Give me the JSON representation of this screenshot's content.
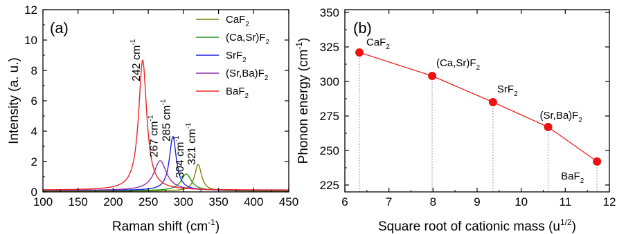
{
  "chart_data": [
    {
      "type": "line",
      "panel_label": "(a)",
      "xlabel": "Raman shift (cm",
      "xlabel_sup": "-1",
      "xlabel_tail": ")",
      "ylabel": "Intensity (a. u.)",
      "xlim": [
        100,
        450
      ],
      "ylim": [
        0,
        12
      ],
      "x_ticks": [
        "100",
        "150",
        "200",
        "250",
        "300",
        "350",
        "400",
        "450"
      ],
      "y_ticks": [
        "0",
        "2",
        "4",
        "6",
        "8",
        "10",
        "12"
      ],
      "legend_position": "top-right",
      "series": [
        {
          "base": "CaF",
          "sub": "2",
          "color": "#808000",
          "center": 321,
          "gamma": 6,
          "amplitude": 1.75,
          "baseline": 0.05,
          "label": "321 cm",
          "label_sup": "-1"
        },
        {
          "base": "(Ca,Sr)F",
          "sub": "2",
          "color": "#1a9a1a",
          "center": 304,
          "gamma": 9,
          "amplitude": 1.1,
          "baseline": 0.08,
          "label": "304 cm",
          "label_sup": "-1"
        },
        {
          "base": "SrF",
          "sub": "2",
          "color": "#1f1fe6",
          "center": 285,
          "gamma": 6,
          "amplitude": 3.55,
          "baseline": 0.1,
          "label": "285 cm",
          "label_sup": "-1"
        },
        {
          "base": "(Sr,Ba)F",
          "sub": "2",
          "color": "#8b2fa8",
          "center": 267,
          "gamma": 11,
          "amplitude": 1.95,
          "baseline": 0.1,
          "label": "267 cm",
          "label_sup": "-1"
        },
        {
          "base": "BaF",
          "sub": "2",
          "color": "#ee2222",
          "center": 242,
          "gamma": 7,
          "amplitude": 8.55,
          "baseline": 0.12,
          "label": "242 cm",
          "label_sup": "-1"
        }
      ]
    },
    {
      "type": "line",
      "panel_label": "(b)",
      "xlabel": "Square root of cationic mass (u",
      "xlabel_sup": "1/2",
      "xlabel_tail": ")",
      "ylabel": "Phonon energy (cm",
      "ylabel_sup": "-1",
      "ylabel_tail": ")",
      "xlim": [
        6,
        12
      ],
      "ylim": [
        220,
        352
      ],
      "x_ticks": [
        "6",
        "7",
        "8",
        "9",
        "10",
        "11",
        "12"
      ],
      "y_ticks": [
        "225",
        "250",
        "275",
        "300",
        "325",
        "350"
      ],
      "line_color": "#ee2222",
      "marker_color": "#ee1111",
      "points": [
        {
          "x": 6.33,
          "y": 321,
          "base": "CaF",
          "sub": "2"
        },
        {
          "x": 7.98,
          "y": 304,
          "base": "(Ca,Sr)F",
          "sub": "2"
        },
        {
          "x": 9.36,
          "y": 285,
          "base": "SrF",
          "sub": "2"
        },
        {
          "x": 10.61,
          "y": 267,
          "base": "(Sr,Ba)F",
          "sub": "2"
        },
        {
          "x": 11.72,
          "y": 242,
          "base": "BaF",
          "sub": "2"
        }
      ]
    }
  ]
}
